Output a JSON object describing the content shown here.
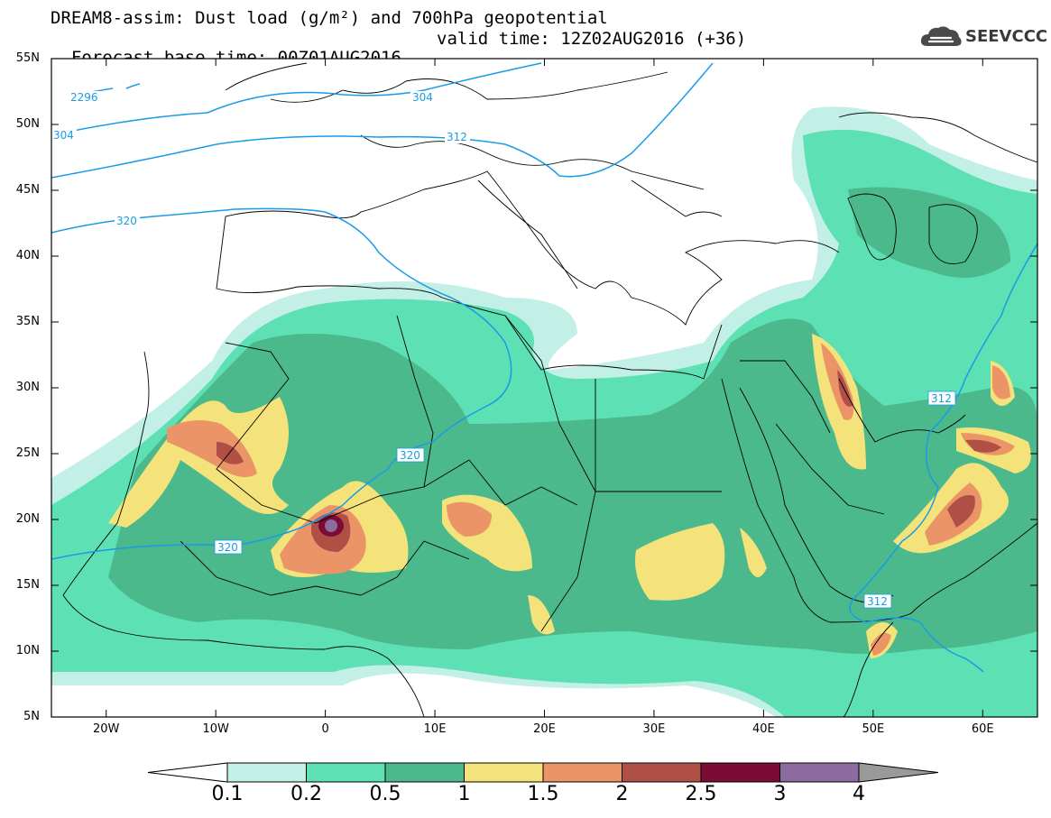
{
  "header": {
    "line1": "DREAM8-assim: Dust load (g/m²) and 700hPa geopotential",
    "line2_base": "Forecast base time: 00Z01AUG2016",
    "line2_valid": "valid time: 12Z02AUG2016 (+36)"
  },
  "logo": {
    "text": "SEEVCCC",
    "icon": "cloud-icon"
  },
  "map": {
    "lat_labels": [
      "55N",
      "50N",
      "45N",
      "40N",
      "35N",
      "30N",
      "25N",
      "20N",
      "15N",
      "10N",
      "5N"
    ],
    "lon_labels": [
      "20W",
      "10W",
      "0",
      "10E",
      "20E",
      "30E",
      "40E",
      "50E",
      "60E"
    ],
    "lat_range": [
      5,
      55
    ],
    "lon_range": [
      -25,
      65
    ],
    "contour_labels": [
      "2296",
      "304",
      "304",
      "312",
      "320",
      "320",
      "320",
      "312",
      "312"
    ]
  },
  "colorbar": {
    "levels": [
      "0.1",
      "0.2",
      "0.5",
      "1",
      "1.5",
      "2",
      "2.5",
      "3",
      "4"
    ],
    "colors": [
      "#c2efe6",
      "#5ee0b5",
      "#4cb98c",
      "#f4e37a",
      "#ea9467",
      "#b04f45",
      "#7a0c35",
      "#8d6aa0",
      "#9a9a9a"
    ]
  }
}
